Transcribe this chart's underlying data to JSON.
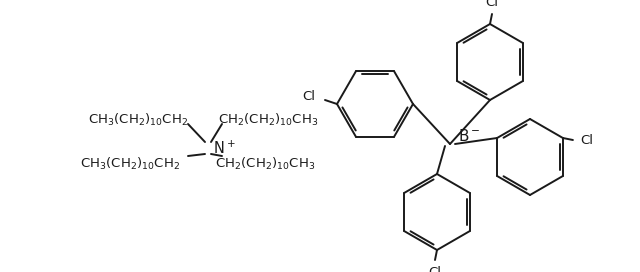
{
  "bg_color": "#ffffff",
  "line_color": "#1a1a1a",
  "text_color": "#1a1a1a",
  "figsize": [
    6.4,
    2.72
  ],
  "dpi": 100,
  "lw": 1.4,
  "font_size": 9.5,
  "xlim": [
    0,
    640
  ],
  "ylim": [
    0,
    272
  ]
}
